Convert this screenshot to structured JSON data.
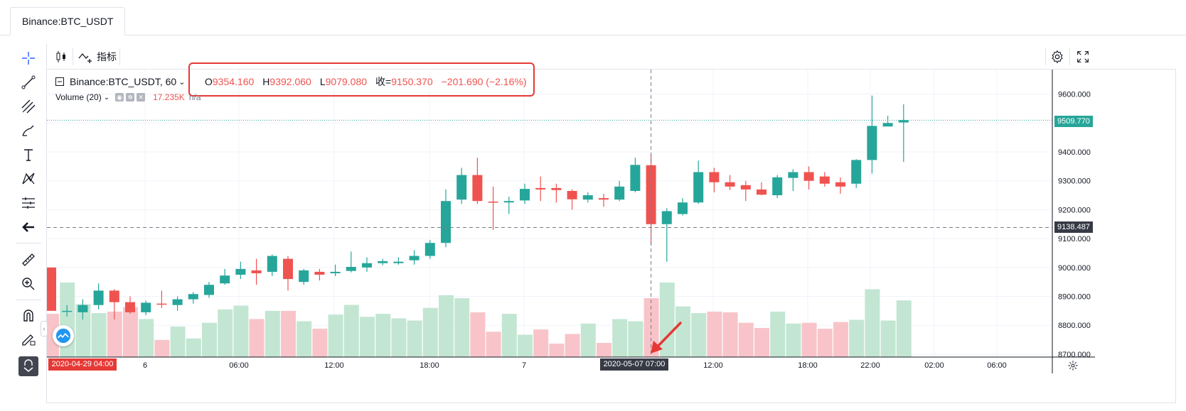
{
  "tab": {
    "title": "Binance:BTC_USDT"
  },
  "toolbar": {
    "indicators_label": "指标"
  },
  "legend": {
    "symbol": "Binance:BTC_USDT, 60",
    "ohlc": [
      {
        "label": "O",
        "value": "9354.160"
      },
      {
        "label": "H",
        "value": "9392.060"
      },
      {
        "label": "L",
        "value": "9079.080"
      },
      {
        "label": "收=",
        "value": "9150.370"
      }
    ],
    "change": "−201.690 (−2.16%)",
    "volume_label": "Volume (20)",
    "volume_value": "17.235K",
    "volume_ma": "n/a"
  },
  "price_labels": {
    "last": "9509.770",
    "crosshair": "9138.487"
  },
  "time_labels": {
    "crosshair": "2020-05-07   07:00",
    "start": "2020-04-29   04:00"
  },
  "colors": {
    "up": "#26a69a",
    "down": "#ef5350",
    "up_volume": "#c3e6d3",
    "down_volume": "#f8c4c9",
    "highlight": "#e53935"
  },
  "chart_data": {
    "type": "candlestick",
    "y_ticks": [
      "9600.000",
      "9500.000",
      "9400.000",
      "9300.000",
      "9200.000",
      "9100.000",
      "9000.000",
      "8900.000",
      "8800.000",
      "8700.000"
    ],
    "ylim": [
      8690,
      9685
    ],
    "x_ticks": [
      "6",
      "06:00",
      "12:00",
      "18:00",
      "7",
      "12:00",
      "18:00",
      "22:00",
      "02:00",
      "06:00"
    ],
    "candles": [
      {
        "o": 9000,
        "h": 9000,
        "l": 8850,
        "c": 8850,
        "v": 0.58
      },
      {
        "o": 8850,
        "h": 8870,
        "l": 8830,
        "c": 8850,
        "v": 1.0
      },
      {
        "o": 8845,
        "h": 8890,
        "l": 8820,
        "c": 8870,
        "v": 0.71
      },
      {
        "o": 8870,
        "h": 8945,
        "l": 8855,
        "c": 8920,
        "v": 0.59
      },
      {
        "o": 8920,
        "h": 8925,
        "l": 8820,
        "c": 8880,
        "v": 0.61
      },
      {
        "o": 8880,
        "h": 8900,
        "l": 8840,
        "c": 8845,
        "v": 0.67
      },
      {
        "o": 8845,
        "h": 8885,
        "l": 8835,
        "c": 8878,
        "v": 0.51
      },
      {
        "o": 8875,
        "h": 8920,
        "l": 8860,
        "c": 8872,
        "v": 0.23
      },
      {
        "o": 8870,
        "h": 8900,
        "l": 8850,
        "c": 8890,
        "v": 0.41
      },
      {
        "o": 8890,
        "h": 8915,
        "l": 8875,
        "c": 8908,
        "v": 0.25
      },
      {
        "o": 8905,
        "h": 8950,
        "l": 8895,
        "c": 8940,
        "v": 0.46
      },
      {
        "o": 8945,
        "h": 8995,
        "l": 8940,
        "c": 8972,
        "v": 0.64
      },
      {
        "o": 8975,
        "h": 9020,
        "l": 8960,
        "c": 8995,
        "v": 0.69
      },
      {
        "o": 8990,
        "h": 9030,
        "l": 8940,
        "c": 8980,
        "v": 0.51
      },
      {
        "o": 8985,
        "h": 9045,
        "l": 8970,
        "c": 9040,
        "v": 0.62
      },
      {
        "o": 9030,
        "h": 9040,
        "l": 8920,
        "c": 8960,
        "v": 0.62
      },
      {
        "o": 8950,
        "h": 8995,
        "l": 8940,
        "c": 8990,
        "v": 0.48
      },
      {
        "o": 8985,
        "h": 8995,
        "l": 8955,
        "c": 8975,
        "v": 0.38
      },
      {
        "o": 8980,
        "h": 9010,
        "l": 8970,
        "c": 8985,
        "v": 0.57
      },
      {
        "o": 8988,
        "h": 9055,
        "l": 8983,
        "c": 9002,
        "v": 0.7
      },
      {
        "o": 9000,
        "h": 9035,
        "l": 8985,
        "c": 9015,
        "v": 0.54
      },
      {
        "o": 9015,
        "h": 9030,
        "l": 9008,
        "c": 9022,
        "v": 0.58
      },
      {
        "o": 9015,
        "h": 9035,
        "l": 9010,
        "c": 9020,
        "v": 0.52
      },
      {
        "o": 9025,
        "h": 9060,
        "l": 9010,
        "c": 9040,
        "v": 0.49
      },
      {
        "o": 9040,
        "h": 9095,
        "l": 9030,
        "c": 9085,
        "v": 0.66
      },
      {
        "o": 9085,
        "h": 9270,
        "l": 9070,
        "c": 9230,
        "v": 0.83
      },
      {
        "o": 9235,
        "h": 9345,
        "l": 9220,
        "c": 9320,
        "v": 0.79
      },
      {
        "o": 9320,
        "h": 9380,
        "l": 9220,
        "c": 9230,
        "v": 0.6
      },
      {
        "o": 9228,
        "h": 9280,
        "l": 9130,
        "c": 9225,
        "v": 0.34
      },
      {
        "o": 9225,
        "h": 9245,
        "l": 9185,
        "c": 9230,
        "v": 0.58
      },
      {
        "o": 9232,
        "h": 9290,
        "l": 9220,
        "c": 9272,
        "v": 0.3
      },
      {
        "o": 9275,
        "h": 9315,
        "l": 9230,
        "c": 9270,
        "v": 0.37
      },
      {
        "o": 9275,
        "h": 9290,
        "l": 9225,
        "c": 9268,
        "v": 0.18
      },
      {
        "o": 9265,
        "h": 9270,
        "l": 9200,
        "c": 9236,
        "v": 0.31
      },
      {
        "o": 9235,
        "h": 9260,
        "l": 9225,
        "c": 9250,
        "v": 0.45
      },
      {
        "o": 9240,
        "h": 9255,
        "l": 9210,
        "c": 9235,
        "v": 0.19
      },
      {
        "o": 9235,
        "h": 9300,
        "l": 9230,
        "c": 9280,
        "v": 0.51
      },
      {
        "o": 9265,
        "h": 9380,
        "l": 9260,
        "c": 9355,
        "v": 0.48
      },
      {
        "o": 9354,
        "h": 9392,
        "l": 9079,
        "c": 9150,
        "v": 0.79
      },
      {
        "o": 9150,
        "h": 9205,
        "l": 9020,
        "c": 9195,
        "v": 1.0
      },
      {
        "o": 9185,
        "h": 9240,
        "l": 9180,
        "c": 9225,
        "v": 0.68
      },
      {
        "o": 9225,
        "h": 9370,
        "l": 9220,
        "c": 9330,
        "v": 0.59
      },
      {
        "o": 9330,
        "h": 9345,
        "l": 9260,
        "c": 9295,
        "v": 0.61
      },
      {
        "o": 9295,
        "h": 9320,
        "l": 9268,
        "c": 9280,
        "v": 0.6
      },
      {
        "o": 9285,
        "h": 9300,
        "l": 9230,
        "c": 9270,
        "v": 0.46
      },
      {
        "o": 9270,
        "h": 9295,
        "l": 9250,
        "c": 9252,
        "v": 0.39
      },
      {
        "o": 9250,
        "h": 9320,
        "l": 9240,
        "c": 9312,
        "v": 0.61
      },
      {
        "o": 9310,
        "h": 9340,
        "l": 9265,
        "c": 9330,
        "v": 0.45
      },
      {
        "o": 9330,
        "h": 9350,
        "l": 9270,
        "c": 9300,
        "v": 0.46
      },
      {
        "o": 9315,
        "h": 9330,
        "l": 9280,
        "c": 9290,
        "v": 0.38
      },
      {
        "o": 9295,
        "h": 9312,
        "l": 9255,
        "c": 9280,
        "v": 0.47
      },
      {
        "o": 9290,
        "h": 9375,
        "l": 9275,
        "c": 9372,
        "v": 0.5
      },
      {
        "o": 9372,
        "h": 9595,
        "l": 9325,
        "c": 9490,
        "v": 0.91
      },
      {
        "o": 9488,
        "h": 9525,
        "l": 9490,
        "c": 9500,
        "v": 0.49
      },
      {
        "o": 9502,
        "h": 9565,
        "l": 9365,
        "c": 9510,
        "v": 0.76
      }
    ]
  }
}
